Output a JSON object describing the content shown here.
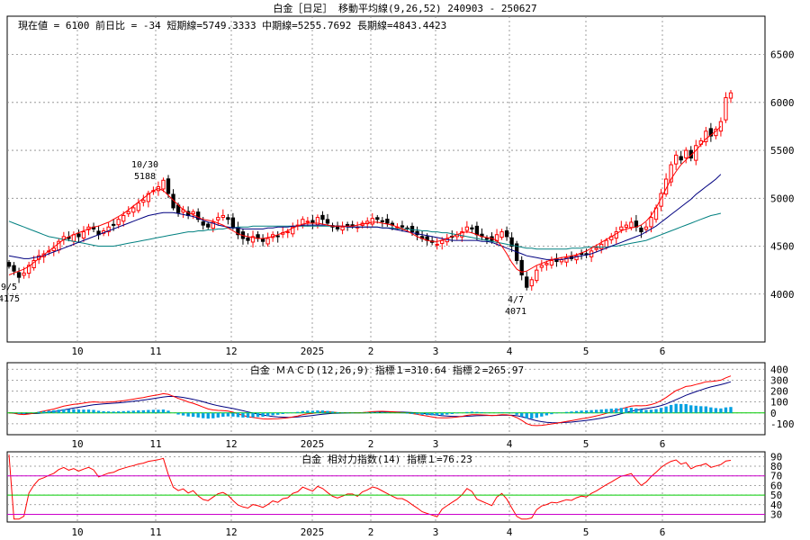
{
  "header": {
    "title": "白金［日足］ 移動平均線(9,26,52)  240903 - 250627",
    "info": "現在値 = 6100  前日比 = -34   短期線=5749.3333   中期線=5255.7692   長期線=4843.4423"
  },
  "colors": {
    "up": "#ff0000",
    "down": "#000000",
    "short_ma": "#ff0000",
    "mid_ma": "#000080",
    "long_ma": "#008080",
    "macd": "#ff0000",
    "signal": "#000080",
    "hist": "#00a0e0",
    "rsi": "#ff0000",
    "rsi_band70": "#cc00cc",
    "rsi_band30": "#cc00cc",
    "rsi_mid": "#00cc00",
    "grid": "#888888"
  },
  "chart_data": [
    {
      "type": "candlestick",
      "title": "白金［日足］ 移動平均線(9,26,52)  240903 - 250627",
      "x_labels": [
        "10",
        "11",
        "12",
        "2025",
        "2",
        "3",
        "4",
        "5",
        "6"
      ],
      "ylim": [
        3500,
        6900
      ],
      "y_ticks": [
        "4000",
        "4500",
        "5000",
        "5500",
        "6000",
        "6500"
      ],
      "annotations": [
        {
          "label": "9/5",
          "value": "4175"
        },
        {
          "label": "10/30",
          "value": "5188"
        },
        {
          "label": "4/7",
          "value": "4071"
        }
      ],
      "series": [
        {
          "name": "短期線",
          "value": "5749.3333"
        },
        {
          "name": "中期線",
          "value": "5255.7692"
        },
        {
          "name": "長期線",
          "value": "4843.4423"
        }
      ],
      "close_path": [
        4290,
        4240,
        4175,
        4220,
        4300,
        4350,
        4400,
        4420,
        4450,
        4480,
        4550,
        4600,
        4580,
        4620,
        4600,
        4650,
        4700,
        4680,
        4620,
        4660,
        4700,
        4720,
        4780,
        4820,
        4860,
        4900,
        4950,
        4980,
        5050,
        5080,
        5120,
        5188,
        5050,
        4900,
        4850,
        4880,
        4820,
        4860,
        4780,
        4720,
        4700,
        4750,
        4800,
        4820,
        4780,
        4700,
        4620,
        4580,
        4560,
        4600,
        4580,
        4550,
        4580,
        4620,
        4600,
        4640,
        4650,
        4700,
        4720,
        4780,
        4760,
        4740,
        4800,
        4780,
        4740,
        4700,
        4680,
        4700,
        4720,
        4720,
        4700,
        4740,
        4760,
        4790,
        4780,
        4760,
        4740,
        4720,
        4700,
        4700,
        4680,
        4650,
        4620,
        4580,
        4560,
        4540,
        4520,
        4560,
        4580,
        4600,
        4620,
        4650,
        4700,
        4680,
        4620,
        4600,
        4580,
        4560,
        4620,
        4650,
        4600,
        4500,
        4350,
        4200,
        4071,
        4150,
        4250,
        4300,
        4320,
        4350,
        4340,
        4360,
        4380,
        4370,
        4400,
        4420,
        4410,
        4450,
        4480,
        4520,
        4560,
        4600,
        4650,
        4700,
        4720,
        4750,
        4700,
        4650,
        4700,
        4800,
        4900,
        5050,
        5200,
        5350,
        5450,
        5400,
        5500,
        5420,
        5550,
        5600,
        5700,
        5650,
        5720,
        5800,
        6050,
        6100
      ],
      "ma9_path": [
        4200,
        4220,
        4240,
        4260,
        4290,
        4330,
        4370,
        4410,
        4450,
        4490,
        4530,
        4570,
        4600,
        4620,
        4640,
        4660,
        4680,
        4700,
        4710,
        4730,
        4750,
        4780,
        4810,
        4840,
        4880,
        4920,
        4960,
        5000,
        5040,
        5080,
        5100,
        5080,
        5030,
        4980,
        4930,
        4880,
        4850,
        4830,
        4800,
        4780,
        4770,
        4760,
        4740,
        4720,
        4690,
        4660,
        4630,
        4610,
        4600,
        4590,
        4580,
        4580,
        4590,
        4600,
        4620,
        4640,
        4660,
        4690,
        4710,
        4730,
        4740,
        4740,
        4740,
        4730,
        4720,
        4710,
        4710,
        4710,
        4710,
        4710,
        4720,
        4730,
        4740,
        4750,
        4750,
        4740,
        4730,
        4720,
        4700,
        4680,
        4660,
        4630,
        4600,
        4580,
        4560,
        4550,
        4550,
        4560,
        4580,
        4600,
        4620,
        4640,
        4650,
        4640,
        4620,
        4600,
        4590,
        4580,
        4560,
        4500,
        4420,
        4330,
        4260,
        4230,
        4240,
        4270,
        4300,
        4320,
        4340,
        4360,
        4370,
        4380,
        4390,
        4400,
        4410,
        4430,
        4450,
        4480,
        4510,
        4540,
        4570,
        4600,
        4630,
        4660,
        4680,
        4690,
        4700,
        4720,
        4760,
        4820,
        4900,
        5000,
        5100,
        5200,
        5280,
        5350,
        5400,
        5450,
        5500,
        5560,
        5620,
        5660,
        5700,
        5750
      ],
      "ma26_path": [
        4400,
        4390,
        4380,
        4370,
        4370,
        4380,
        4390,
        4400,
        4420,
        4440,
        4460,
        4480,
        4500,
        4520,
        4540,
        4560,
        4580,
        4600,
        4620,
        4640,
        4660,
        4680,
        4700,
        4720,
        4740,
        4760,
        4780,
        4800,
        4820,
        4830,
        4840,
        4850,
        4850,
        4850,
        4840,
        4830,
        4820,
        4810,
        4790,
        4770,
        4750,
        4740,
        4720,
        4710,
        4700,
        4690,
        4690,
        4680,
        4680,
        4680,
        4680,
        4680,
        4690,
        4690,
        4700,
        4700,
        4700,
        4710,
        4710,
        4720,
        4720,
        4720,
        4720,
        4720,
        4720,
        4710,
        4710,
        4710,
        4700,
        4700,
        4700,
        4700,
        4700,
        4700,
        4700,
        4690,
        4690,
        4680,
        4670,
        4660,
        4650,
        4640,
        4630,
        4620,
        4610,
        4600,
        4590,
        4580,
        4570,
        4560,
        4560,
        4560,
        4560,
        4560,
        4560,
        4550,
        4550,
        4540,
        4520,
        4500,
        4480,
        4460,
        4440,
        4420,
        4400,
        4390,
        4380,
        4370,
        4360,
        4360,
        4360,
        4360,
        4370,
        4380,
        4390,
        4400,
        4410,
        4420,
        4440,
        4460,
        4480,
        4500,
        4520,
        4540,
        4560,
        4580,
        4600,
        4620,
        4650,
        4680,
        4710,
        4750,
        4790,
        4830,
        4870,
        4910,
        4950,
        4990,
        5040,
        5080,
        5120,
        5160,
        5200,
        5250
      ],
      "ma52_path": [
        4760,
        4740,
        4720,
        4700,
        4680,
        4660,
        4640,
        4620,
        4600,
        4590,
        4580,
        4570,
        4560,
        4550,
        4540,
        4530,
        4520,
        4510,
        4500,
        4500,
        4500,
        4500,
        4510,
        4520,
        4530,
        4540,
        4550,
        4560,
        4570,
        4580,
        4590,
        4600,
        4610,
        4620,
        4630,
        4640,
        4650,
        4650,
        4660,
        4660,
        4670,
        4670,
        4680,
        4680,
        4690,
        4690,
        4700,
        4700,
        4700,
        4710,
        4710,
        4710,
        4710,
        4710,
        4710,
        4710,
        4710,
        4710,
        4710,
        4710,
        4710,
        4710,
        4710,
        4710,
        4710,
        4710,
        4710,
        4710,
        4700,
        4700,
        4700,
        4700,
        4700,
        4700,
        4700,
        4690,
        4690,
        4690,
        4680,
        4680,
        4680,
        4670,
        4670,
        4660,
        4660,
        4650,
        4650,
        4640,
        4640,
        4630,
        4620,
        4610,
        4600,
        4590,
        4580,
        4570,
        4560,
        4550,
        4540,
        4530,
        4520,
        4510,
        4500,
        4490,
        4480,
        4480,
        4470,
        4470,
        4470,
        4470,
        4470,
        4470,
        4470,
        4480,
        4480,
        4480,
        4490,
        4490,
        4490,
        4490,
        4490,
        4500,
        4500,
        4510,
        4520,
        4530,
        4540,
        4550,
        4560,
        4580,
        4600,
        4620,
        4640,
        4660,
        4680,
        4700,
        4720,
        4740,
        4760,
        4780,
        4800,
        4820,
        4830,
        4843
      ]
    },
    {
      "type": "line",
      "title": "白金  ＭＡＣＤ(12,26,9) 指標１=310.64  指標２=265.97",
      "name": "白金",
      "indicator": "ＭＡＣＤ(12,26,9)",
      "values": [
        "指標１=310.64",
        "指標２=265.97"
      ],
      "ylim": [
        -200,
        460
      ],
      "y_ticks": [
        "400",
        "300",
        "200",
        "100",
        "0",
        "-100"
      ]
    },
    {
      "type": "line",
      "title": "白金  相対力指数(14) 指標１=76.23",
      "name": "白金",
      "indicator": "相対力指数(14)",
      "values": [
        "指標１=76.23"
      ],
      "ylim": [
        22,
        95
      ],
      "y_ticks": [
        "90",
        "80",
        "70",
        "60",
        "50",
        "40",
        "30"
      ]
    }
  ]
}
